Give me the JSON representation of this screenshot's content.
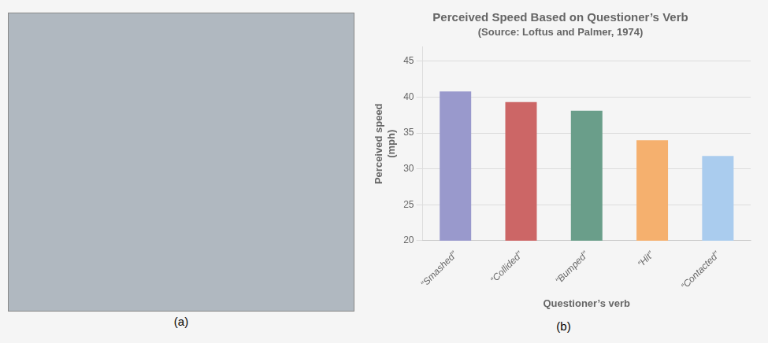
{
  "chart_data": {
    "type": "bar",
    "title": "Perceived Speed Based on Questioner’s Verb",
    "subtitle": "(Source: Loftus and Palmer, 1974)",
    "xlabel": "Questioner’s verb",
    "ylabel": "Perceived speed\n(mph)",
    "categories": [
      "“Smashed”",
      "“Collided”",
      "“Bumped”",
      "“Hit”",
      "“Contacted”"
    ],
    "values": [
      40.8,
      39.3,
      38.1,
      34.0,
      31.8
    ],
    "colors": [
      "#9999cc",
      "#cc6666",
      "#6a9e8a",
      "#f5b06e",
      "#aaccee"
    ],
    "ylim": [
      20,
      47
    ],
    "yticks": [
      20,
      25,
      30,
      35,
      40,
      45
    ],
    "grid": true,
    "annotations": [
      "(a)",
      "(b)"
    ]
  }
}
